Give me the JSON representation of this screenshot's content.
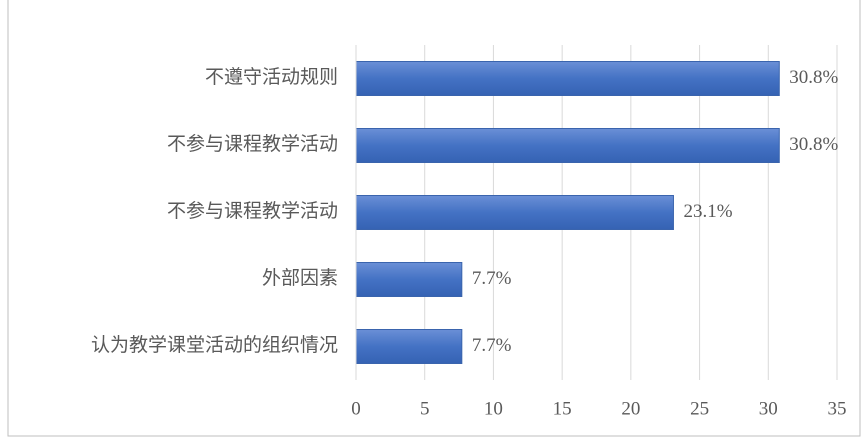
{
  "chart_data": {
    "type": "bar",
    "orientation": "horizontal",
    "categories": [
      "不遵守活动规则",
      "不参与课程教学活动",
      "不参与课程教学活动",
      "外部因素",
      "认为教学课堂活动的组织情况"
    ],
    "values": [
      30.8,
      30.8,
      23.1,
      7.7,
      7.7
    ],
    "value_labels": [
      "30.8%",
      "30.8%",
      "23.1%",
      "7.7%",
      "7.7%"
    ],
    "color": "#4472c4",
    "xlim": [
      0,
      35
    ],
    "xticks": [
      0,
      5,
      10,
      15,
      20,
      25,
      30,
      35
    ],
    "grid": true
  }
}
